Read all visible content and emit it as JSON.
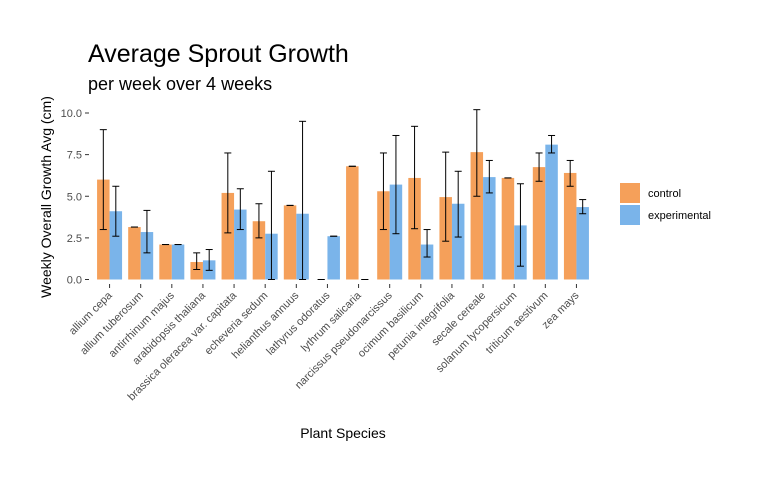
{
  "chart_data": {
    "type": "bar",
    "title": "Average Sprout Growth",
    "subtitle": "per week over 4 weeks",
    "xlabel": "Plant Species",
    "ylabel": "Weekly Overall Growth Avg (cm)",
    "ylim": [
      0,
      10.8
    ],
    "yticks": [
      0,
      2.5,
      5,
      7.5,
      10
    ],
    "ytick_labels": [
      "0.0",
      "2.5",
      "5.0",
      "7.5",
      "10.0"
    ],
    "grid": false,
    "legend_position": "right",
    "categories": [
      "allium cepa",
      "allium tuberosum",
      "antirrhinum majus",
      "arabidopsis thaliana",
      "brassica oleracea var. capitata",
      "echeveria sedum",
      "helianthus annuus",
      "lathyrus odoratus",
      "lythrum salicaria",
      "narcissus pseudonarcissus",
      "ocimum basilicum",
      "petunia integrifolia",
      "secale cereale",
      "solanum lycopersicum",
      "triticum aestivum",
      "zea mays"
    ],
    "series": [
      {
        "name": "control",
        "color": "#F5A05A",
        "values": [
          6.0,
          3.15,
          2.1,
          1.05,
          5.2,
          3.5,
          4.45,
          0.0,
          6.8,
          5.3,
          6.1,
          4.95,
          7.65,
          6.1,
          6.75,
          6.4
        ],
        "err_low": [
          3.0,
          3.15,
          2.1,
          0.6,
          2.8,
          2.5,
          4.45,
          0.0,
          6.8,
          3.0,
          3.05,
          2.3,
          5.0,
          6.1,
          5.9,
          5.6
        ],
        "err_high": [
          9.0,
          3.15,
          2.1,
          1.6,
          7.6,
          4.55,
          4.45,
          0.0,
          6.8,
          7.6,
          9.2,
          7.65,
          10.2,
          6.1,
          7.6,
          7.15
        ]
      },
      {
        "name": "experimental",
        "color": "#7AB4EA",
        "values": [
          4.1,
          2.85,
          2.1,
          1.15,
          4.2,
          2.75,
          3.95,
          2.6,
          0.0,
          5.7,
          2.1,
          4.55,
          6.15,
          3.25,
          8.1,
          4.35
        ],
        "err_low": [
          2.6,
          1.6,
          2.1,
          0.55,
          3.0,
          0.0,
          0.0,
          2.6,
          0.0,
          2.75,
          1.35,
          2.55,
          5.2,
          0.8,
          7.6,
          3.95
        ],
        "err_high": [
          5.6,
          4.15,
          2.1,
          1.8,
          5.45,
          6.5,
          9.5,
          2.6,
          0.0,
          8.65,
          3.0,
          6.5,
          7.15,
          5.75,
          8.65,
          4.8
        ]
      }
    ]
  }
}
